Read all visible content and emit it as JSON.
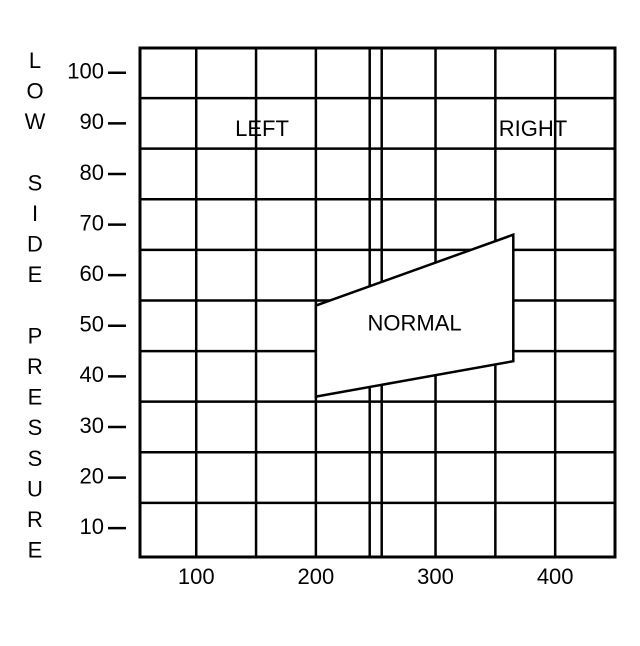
{
  "chart_data": {
    "type": "band",
    "y_label": "LOW SIDE PRESSURE",
    "annotations": [
      "LEFT",
      "RIGHT"
    ],
    "region_label": "NORMAL",
    "x": [
      200,
      365
    ],
    "upper": [
      54,
      68
    ],
    "lower": [
      36,
      43
    ],
    "color": "#ffffff",
    "xlim": [
      53,
      450
    ],
    "xticks": [
      100,
      200,
      300,
      400
    ],
    "ylim": [
      4.3,
      104.9
    ],
    "yticks": [
      10,
      20,
      30,
      40,
      50,
      60,
      70,
      80,
      90,
      100
    ],
    "grid": true
  }
}
